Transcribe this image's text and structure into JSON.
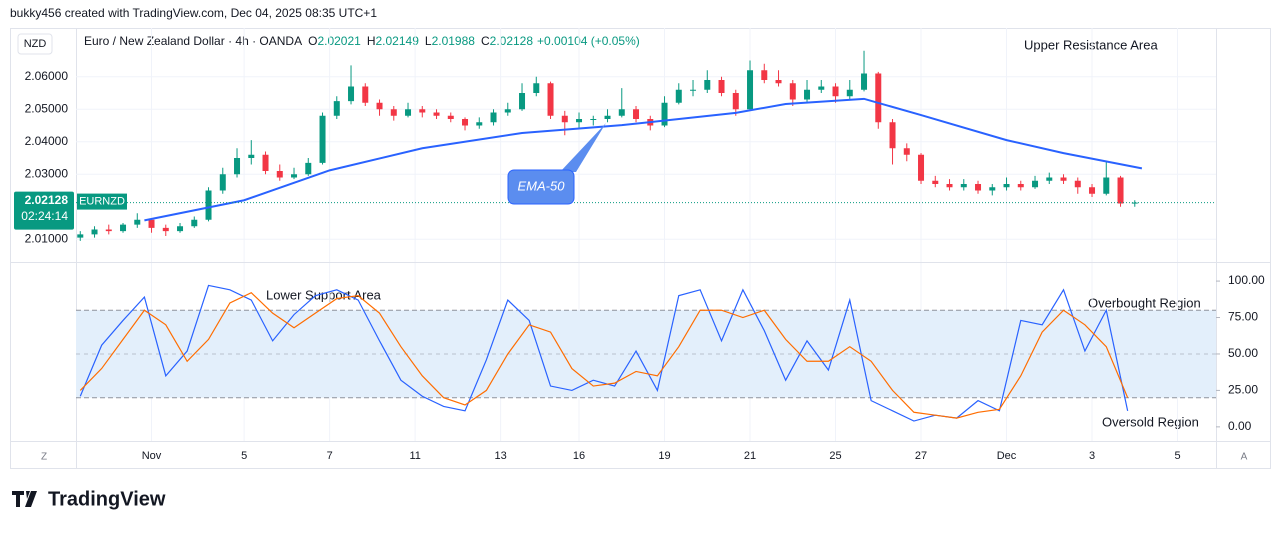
{
  "header": {
    "text": "bukky456 created with TradingView.com, Dec 04, 2025 08:35 UTC+1"
  },
  "footer": {
    "brand": "TradingView"
  },
  "toolbar": {
    "currency": "NZD",
    "left_button": "Z",
    "right_button": "A"
  },
  "legend": {
    "instrument": "Euro / New Zealand Dollar · 4h · OANDA",
    "items": [
      {
        "label": "O",
        "value": "2.02021"
      },
      {
        "label": "H",
        "value": "2.02149"
      },
      {
        "label": "L",
        "value": "2.01988"
      },
      {
        "label": "C",
        "value": "2.02128"
      }
    ],
    "change": "+0.00104 (+0.05%)"
  },
  "annotations": {
    "upper": "Upper Resistance Area",
    "lower": "Lower Support Area",
    "overbought": "Overbought Region",
    "oversold": "Oversold Region"
  },
  "chart_data": [
    {
      "type": "candlestick",
      "xlim": [
        -0.6,
        159.4
      ],
      "ylim": [
        2.003,
        2.075
      ],
      "yticks": [
        {
          "value": 2.01,
          "label": "2.01000"
        },
        {
          "value": 2.03,
          "label": "2.03000"
        },
        {
          "value": 2.04,
          "label": "2.04000"
        },
        {
          "value": 2.05,
          "label": "2.05000"
        },
        {
          "value": 2.06,
          "label": "2.06000"
        }
      ],
      "xticks": [
        {
          "value": 10,
          "label": "Nov"
        },
        {
          "value": 23,
          "label": "5"
        },
        {
          "value": 35,
          "label": "7"
        },
        {
          "value": 47,
          "label": "11"
        },
        {
          "value": 59,
          "label": "13"
        },
        {
          "value": 70,
          "label": "16"
        },
        {
          "value": 82,
          "label": "19"
        },
        {
          "value": 94,
          "label": "21"
        },
        {
          "value": 106,
          "label": "25"
        },
        {
          "value": 118,
          "label": "27"
        },
        {
          "value": 130,
          "label": "Dec"
        },
        {
          "value": 142,
          "label": "3"
        },
        {
          "value": 154,
          "label": "5"
        }
      ],
      "grid": true,
      "up_color": "#089981",
      "down_color": "#f23645",
      "x": [
        0,
        2,
        4,
        6,
        8,
        10,
        12,
        14,
        16,
        18,
        20,
        22,
        24,
        26,
        28,
        30,
        32,
        34,
        36,
        38,
        40,
        42,
        44,
        46,
        48,
        50,
        52,
        54,
        56,
        58,
        60,
        62,
        64,
        66,
        68,
        70,
        72,
        74,
        76,
        78,
        80,
        82,
        84,
        86,
        88,
        90,
        92,
        94,
        96,
        98,
        100,
        102,
        104,
        106,
        108,
        110,
        112,
        114,
        116,
        118,
        120,
        122,
        124,
        126,
        128,
        130,
        132,
        134,
        136,
        138,
        140,
        142,
        144,
        146,
        148
      ],
      "open": [
        2.0105,
        2.0115,
        2.013,
        2.0125,
        2.0145,
        2.016,
        2.0135,
        2.0125,
        2.014,
        2.016,
        2.025,
        2.03,
        2.035,
        2.036,
        2.031,
        2.029,
        2.03,
        2.0335,
        2.048,
        2.0525,
        2.057,
        2.052,
        2.05,
        2.048,
        2.05,
        2.049,
        2.048,
        2.047,
        2.045,
        2.046,
        2.049,
        2.05,
        2.055,
        2.058,
        2.048,
        2.046,
        2.047,
        2.047,
        2.048,
        2.05,
        2.047,
        2.045,
        2.052,
        2.056,
        2.056,
        2.059,
        2.055,
        2.05,
        2.062,
        2.059,
        2.058,
        2.053,
        2.056,
        2.057,
        2.054,
        2.056,
        2.061,
        2.046,
        2.038,
        2.036,
        2.028,
        2.027,
        2.026,
        2.027,
        2.025,
        2.026,
        2.027,
        2.026,
        2.028,
        2.029,
        2.028,
        2.026,
        2.024,
        2.029,
        2.021
      ],
      "high": [
        2.0125,
        2.014,
        2.0145,
        2.015,
        2.018,
        2.0165,
        2.0145,
        2.015,
        2.017,
        2.026,
        2.032,
        2.038,
        2.0405,
        2.037,
        2.033,
        2.032,
        2.035,
        2.049,
        2.054,
        2.0635,
        2.058,
        2.053,
        2.051,
        2.052,
        2.051,
        2.05,
        2.049,
        2.0475,
        2.0475,
        2.05,
        2.052,
        2.058,
        2.06,
        2.0585,
        2.0495,
        2.049,
        2.048,
        2.05,
        2.0565,
        2.051,
        2.048,
        2.054,
        2.058,
        2.059,
        2.062,
        2.06,
        2.056,
        2.065,
        2.064,
        2.062,
        2.059,
        2.059,
        2.059,
        2.058,
        2.059,
        2.068,
        2.0615,
        2.047,
        2.0395,
        2.0365,
        2.0295,
        2.0285,
        2.0285,
        2.028,
        2.027,
        2.029,
        2.028,
        2.0295,
        2.0305,
        2.03,
        2.029,
        2.027,
        2.034,
        2.0295,
        2.022
      ],
      "low": [
        2.0095,
        2.0105,
        2.0115,
        2.012,
        2.0135,
        2.012,
        2.011,
        2.012,
        2.0135,
        2.0155,
        2.024,
        2.029,
        2.033,
        2.03,
        2.028,
        2.0285,
        2.0295,
        2.033,
        2.047,
        2.0515,
        2.051,
        2.048,
        2.0465,
        2.0475,
        2.0475,
        2.047,
        2.046,
        2.0435,
        2.044,
        2.045,
        2.048,
        2.0495,
        2.054,
        2.047,
        2.042,
        2.044,
        2.045,
        2.046,
        2.0475,
        2.046,
        2.0435,
        2.0445,
        2.0515,
        2.054,
        2.055,
        2.054,
        2.048,
        2.0495,
        2.058,
        2.057,
        2.051,
        2.052,
        2.055,
        2.052,
        2.053,
        2.0555,
        2.044,
        2.033,
        2.034,
        2.027,
        2.026,
        2.025,
        2.025,
        2.024,
        2.0235,
        2.025,
        2.025,
        2.0255,
        2.027,
        2.027,
        2.024,
        2.023,
        2.0235,
        2.02,
        2.02
      ],
      "close": [
        2.0115,
        2.013,
        2.0125,
        2.0145,
        2.016,
        2.0135,
        2.0125,
        2.014,
        2.016,
        2.025,
        2.03,
        2.035,
        2.036,
        2.031,
        2.029,
        2.03,
        2.0335,
        2.048,
        2.0525,
        2.057,
        2.052,
        2.05,
        2.048,
        2.05,
        2.049,
        2.048,
        2.047,
        2.045,
        2.046,
        2.049,
        2.05,
        2.055,
        2.058,
        2.048,
        2.046,
        2.047,
        2.047,
        2.048,
        2.05,
        2.047,
        2.045,
        2.052,
        2.056,
        2.056,
        2.059,
        2.055,
        2.05,
        2.062,
        2.059,
        2.058,
        2.053,
        2.056,
        2.057,
        2.054,
        2.056,
        2.061,
        2.046,
        2.038,
        2.036,
        2.028,
        2.027,
        2.026,
        2.027,
        2.025,
        2.026,
        2.027,
        2.026,
        2.028,
        2.029,
        2.028,
        2.026,
        2.024,
        2.029,
        2.021,
        2.02128
      ],
      "series": [
        {
          "name": "EMA-50",
          "color": "#2962ff",
          "x": [
            9,
            23,
            35,
            48,
            62,
            76,
            92,
            99,
            110,
            118,
            130,
            138,
            149
          ],
          "values": [
            2.0158,
            2.022,
            2.0312,
            2.038,
            2.0427,
            2.0451,
            2.0489,
            2.0516,
            2.0532,
            2.0482,
            2.0405,
            2.0365,
            2.0318
          ]
        }
      ],
      "last_price": {
        "value": 2.02128,
        "label": "2.02128",
        "symbol": "EURNZD",
        "countdown": "02:24:14",
        "color": "#089981"
      }
    },
    {
      "type": "line",
      "xlim": [
        -0.6,
        159.4
      ],
      "ylim": [
        -9.7,
        112.4
      ],
      "yticks": [
        {
          "value": 0,
          "label": "0.00"
        },
        {
          "value": 25,
          "label": "25.00"
        },
        {
          "value": 50,
          "label": "50.00"
        },
        {
          "value": 75,
          "label": "75.00"
        },
        {
          "value": 100,
          "label": "100.00"
        }
      ],
      "bands": {
        "lower": 20,
        "middle": 50,
        "upper": 80,
        "fill": "#e3effb"
      },
      "series": [
        {
          "color": "#2962ff",
          "x": [
            0,
            3,
            6,
            9,
            12,
            15,
            18,
            21,
            24,
            27,
            30,
            33,
            36,
            39,
            42,
            45,
            48,
            51,
            54,
            57,
            60,
            63,
            66,
            69,
            72,
            75,
            78,
            81,
            84,
            87,
            90,
            93,
            96,
            99,
            102,
            105,
            108,
            111,
            114,
            117,
            120,
            123,
            126,
            129,
            132,
            135,
            138,
            141,
            144,
            147
          ],
          "values": [
            21,
            56,
            73,
            89,
            35,
            52,
            97,
            94,
            87,
            59,
            77,
            90,
            94,
            87,
            59,
            32,
            21,
            14,
            11,
            46,
            87,
            73,
            28,
            25,
            32,
            28,
            52,
            25,
            90,
            94,
            59,
            94,
            66,
            32,
            59,
            39,
            87,
            18,
            11,
            4,
            8,
            6,
            18,
            11,
            73,
            70,
            94,
            52,
            80,
            11
          ]
        },
        {
          "color": "#ff6d00",
          "x": [
            0,
            3,
            6,
            9,
            12,
            15,
            18,
            21,
            24,
            27,
            30,
            33,
            36,
            39,
            42,
            45,
            48,
            51,
            54,
            57,
            60,
            63,
            66,
            69,
            72,
            75,
            78,
            81,
            84,
            87,
            90,
            93,
            96,
            99,
            102,
            105,
            108,
            111,
            114,
            117,
            120,
            123,
            126,
            129,
            132,
            135,
            138,
            141,
            144,
            147
          ],
          "values": [
            25,
            40,
            60,
            80,
            70,
            45,
            60,
            85,
            92,
            78,
            68,
            78,
            88,
            90,
            78,
            55,
            35,
            20,
            15,
            25,
            50,
            70,
            65,
            40,
            28,
            30,
            38,
            35,
            55,
            80,
            80,
            75,
            80,
            60,
            45,
            45,
            55,
            45,
            25,
            10,
            8,
            6,
            10,
            12,
            35,
            65,
            80,
            70,
            55,
            20
          ]
        }
      ]
    }
  ]
}
